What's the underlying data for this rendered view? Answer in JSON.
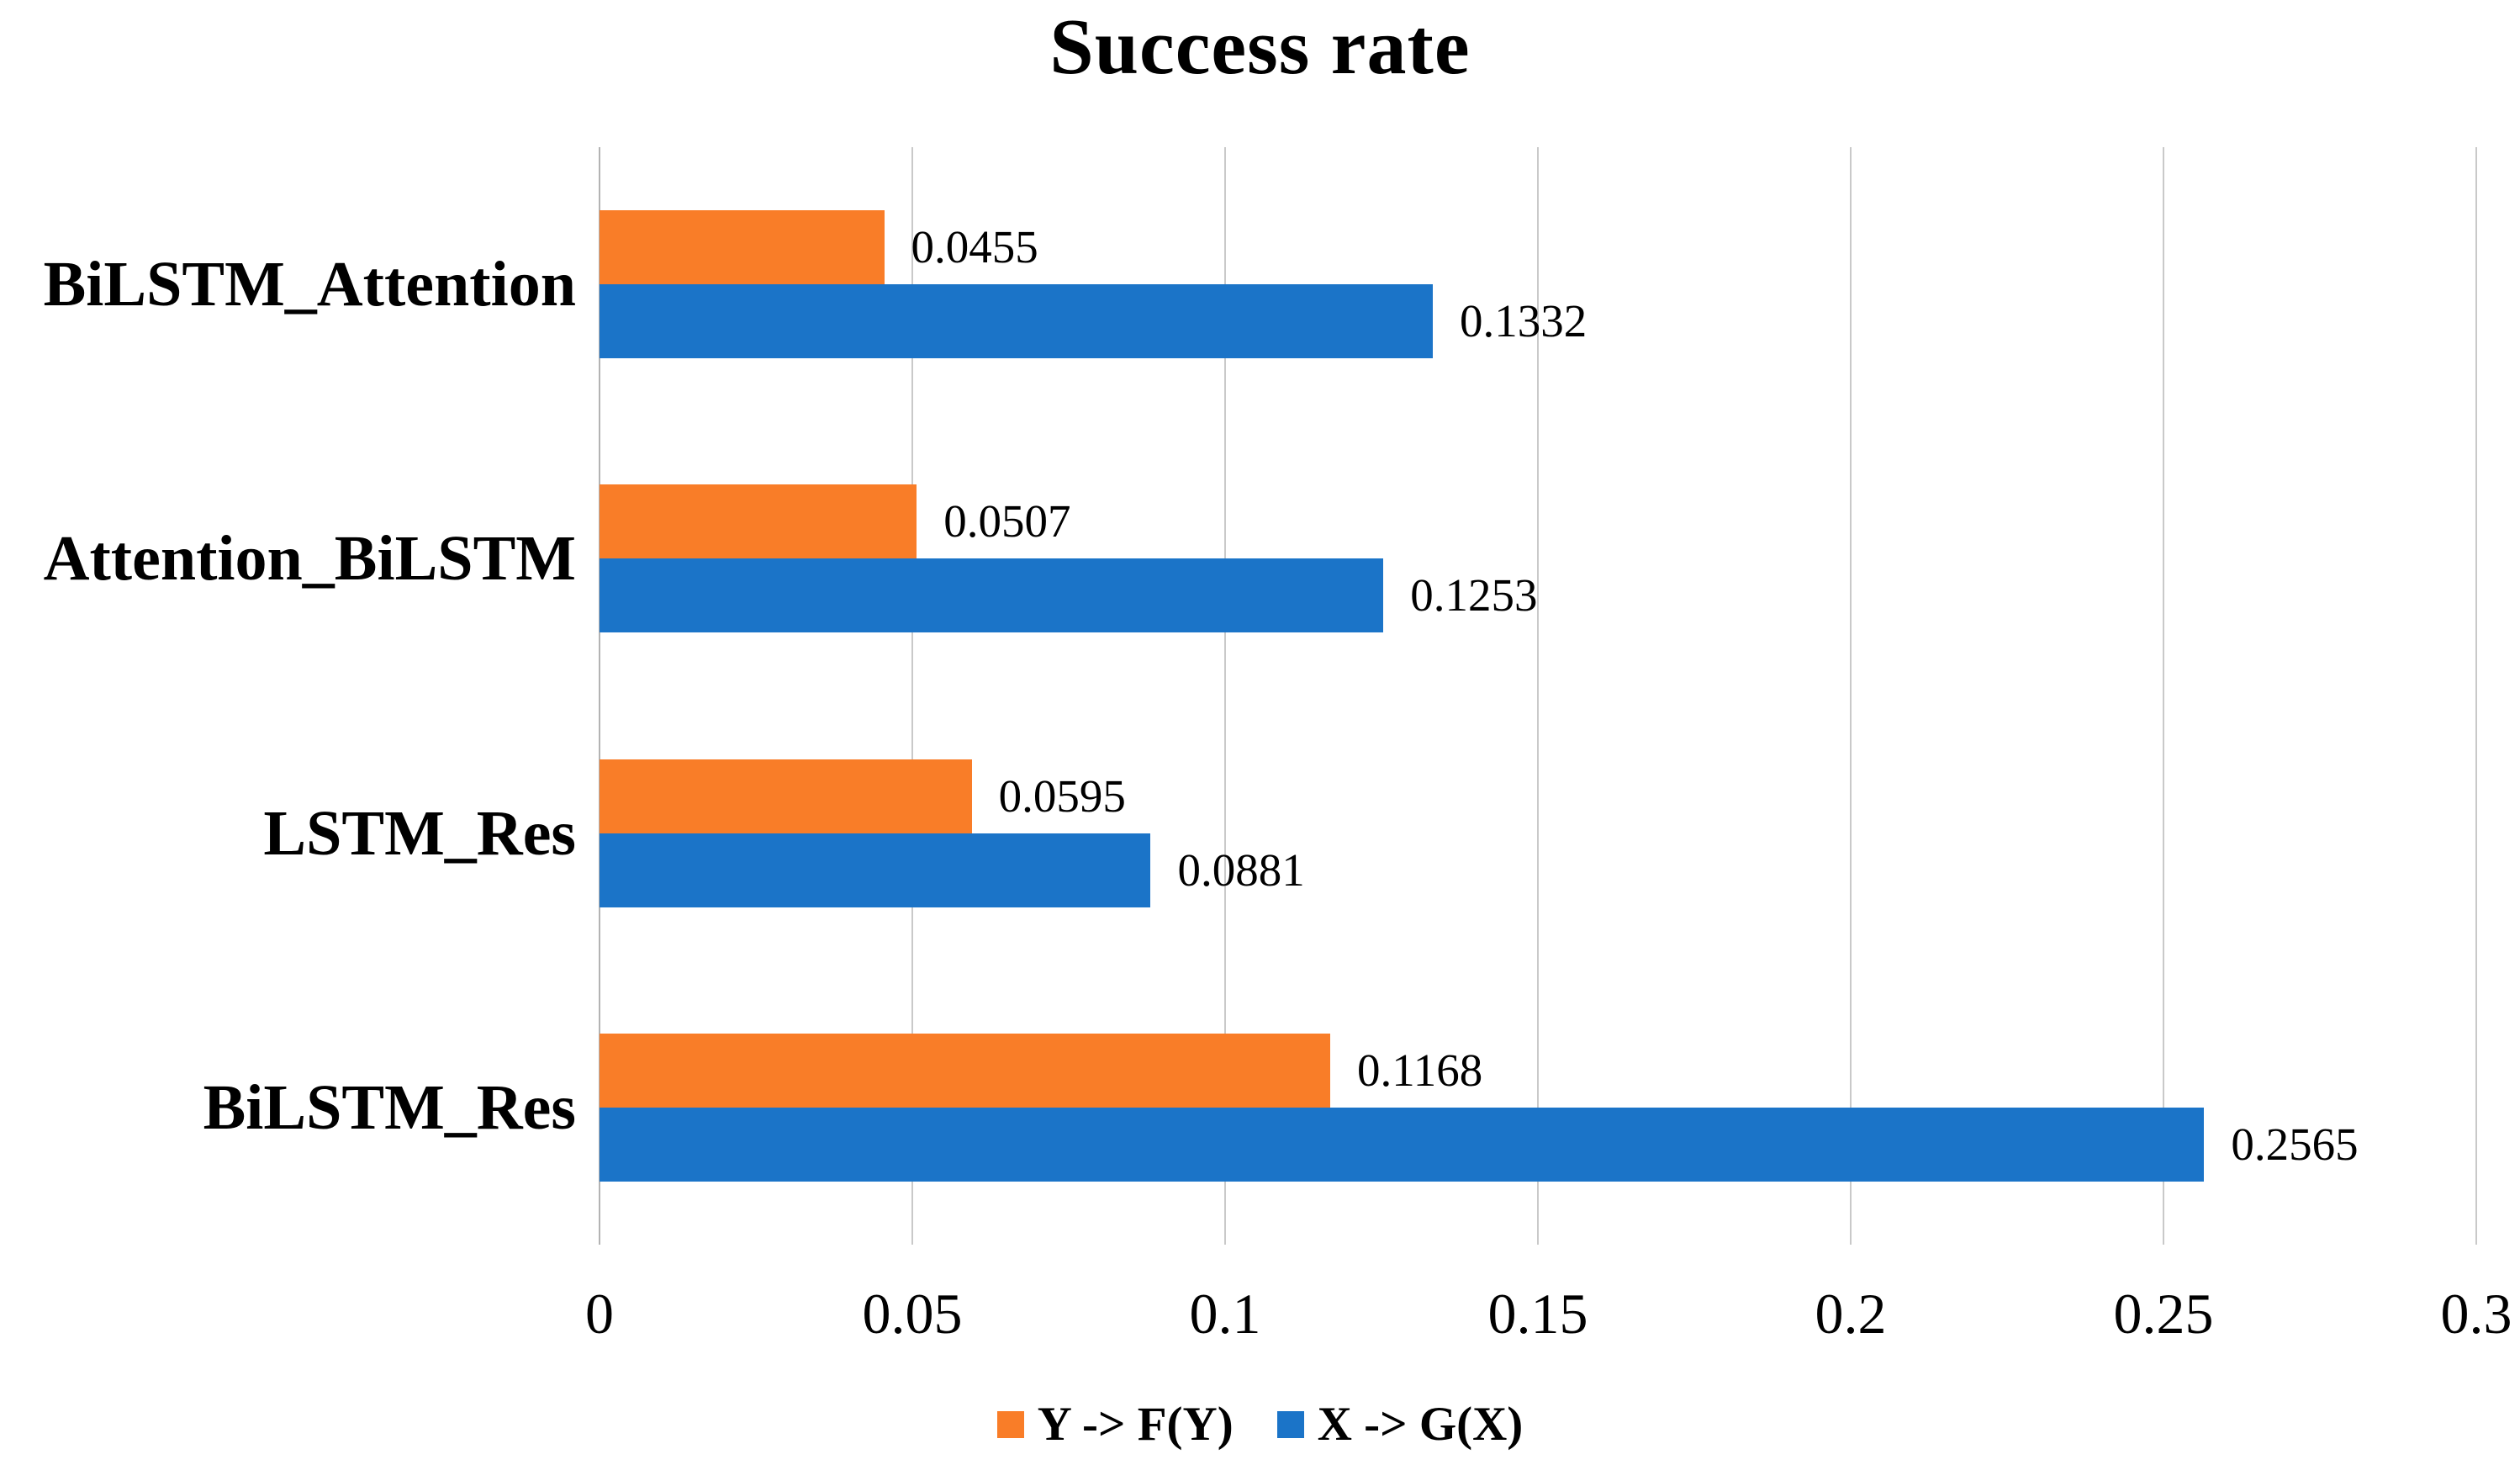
{
  "title": "Success rate",
  "chart_data": {
    "type": "bar",
    "orientation": "horizontal",
    "title": "Success rate",
    "categories": [
      "BiLSTM_Attention",
      "Attention_BiLSTM",
      "LSTM_Res",
      "BiLSTM_Res"
    ],
    "series": [
      {
        "name": "Y -> F(Y)",
        "color": "#f97d28",
        "values": [
          0.0455,
          0.0507,
          0.0595,
          0.1168
        ],
        "labels": [
          "0.0455",
          "0.0507",
          "0.0595",
          "0.1168"
        ]
      },
      {
        "name": "X -> G(X)",
        "color": "#1b74c8",
        "values": [
          0.1332,
          0.1253,
          0.0881,
          0.2565
        ],
        "labels": [
          "0.1332",
          "0.1253",
          "0.0881",
          "0.2565"
        ]
      }
    ],
    "xlim": [
      0,
      0.3
    ],
    "xticks": {
      "values": [
        0,
        0.05,
        0.1,
        0.15,
        0.2,
        0.25,
        0.3
      ],
      "labels": [
        "0",
        "0.05",
        "0.1",
        "0.15",
        "0.2",
        "0.25",
        "0.3"
      ]
    },
    "grid": true,
    "legend_position": "bottom",
    "value_labels_shown": true,
    "colors": {
      "gridline": "#c9c9c9",
      "axis_line": "#b3b3b3",
      "text": "#000000",
      "background": "#ffffff"
    }
  },
  "legend": {
    "items": [
      {
        "label": "Y -> F(Y)",
        "color": "#f97d28"
      },
      {
        "label": "X -> G(X)",
        "color": "#1b74c8"
      }
    ]
  }
}
